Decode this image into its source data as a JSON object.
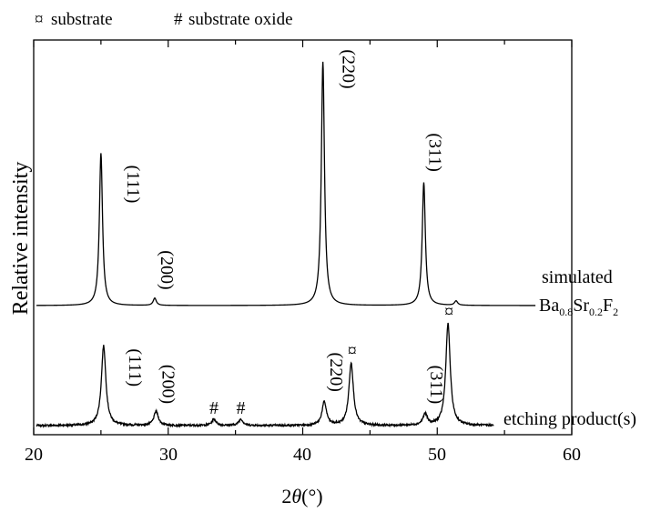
{
  "chart_data": {
    "type": "line",
    "xlabel_prefix": "2",
    "xlabel_symbol": "θ",
    "xlabel_unit": "(°)",
    "ylabel": "Relative intensity",
    "xlim": [
      20,
      60
    ],
    "x_ticks": [
      "20",
      "30",
      "40",
      "50",
      "60"
    ],
    "grid": false,
    "legend": {
      "substrate_marker": "¤",
      "substrate_label": "substrate",
      "oxide_marker": "#",
      "oxide_label": "substrate oxide"
    },
    "series": [
      {
        "name_line1": "simulated",
        "name_formula": {
          "a": "Ba",
          "a_sub": "0.8",
          "b": "Sr",
          "b_sub": "0.2",
          "c": "F",
          "c_sub": "2"
        },
        "baseline": 0,
        "peak_width": 0.14,
        "peaks": [
          {
            "x": 25.0,
            "h": 0.625,
            "label": "(111)"
          },
          {
            "x": 29.0,
            "h": 0.03,
            "label": "(200)"
          },
          {
            "x": 41.5,
            "h": 1.0,
            "label": "(220)"
          },
          {
            "x": 49.0,
            "h": 0.505,
            "label": "(311)"
          },
          {
            "x": 51.4,
            "h": 0.018,
            "label": ""
          }
        ]
      },
      {
        "name": "etching product(s)",
        "baseline": 0,
        "peak_width": 0.2,
        "peaks": [
          {
            "x": 25.2,
            "h": 0.255,
            "label": "(111)"
          },
          {
            "x": 29.1,
            "h": 0.045,
            "label": "(200)"
          },
          {
            "x": 33.4,
            "h": 0.02,
            "label": "#"
          },
          {
            "x": 35.4,
            "h": 0.02,
            "label": "#"
          },
          {
            "x": 41.6,
            "h": 0.075,
            "label": "(220)"
          },
          {
            "x": 43.6,
            "h": 0.2,
            "label": "¤"
          },
          {
            "x": 49.1,
            "h": 0.035,
            "label": "(311)"
          },
          {
            "x": 50.8,
            "h": 0.325,
            "label": "¤"
          }
        ]
      }
    ]
  }
}
